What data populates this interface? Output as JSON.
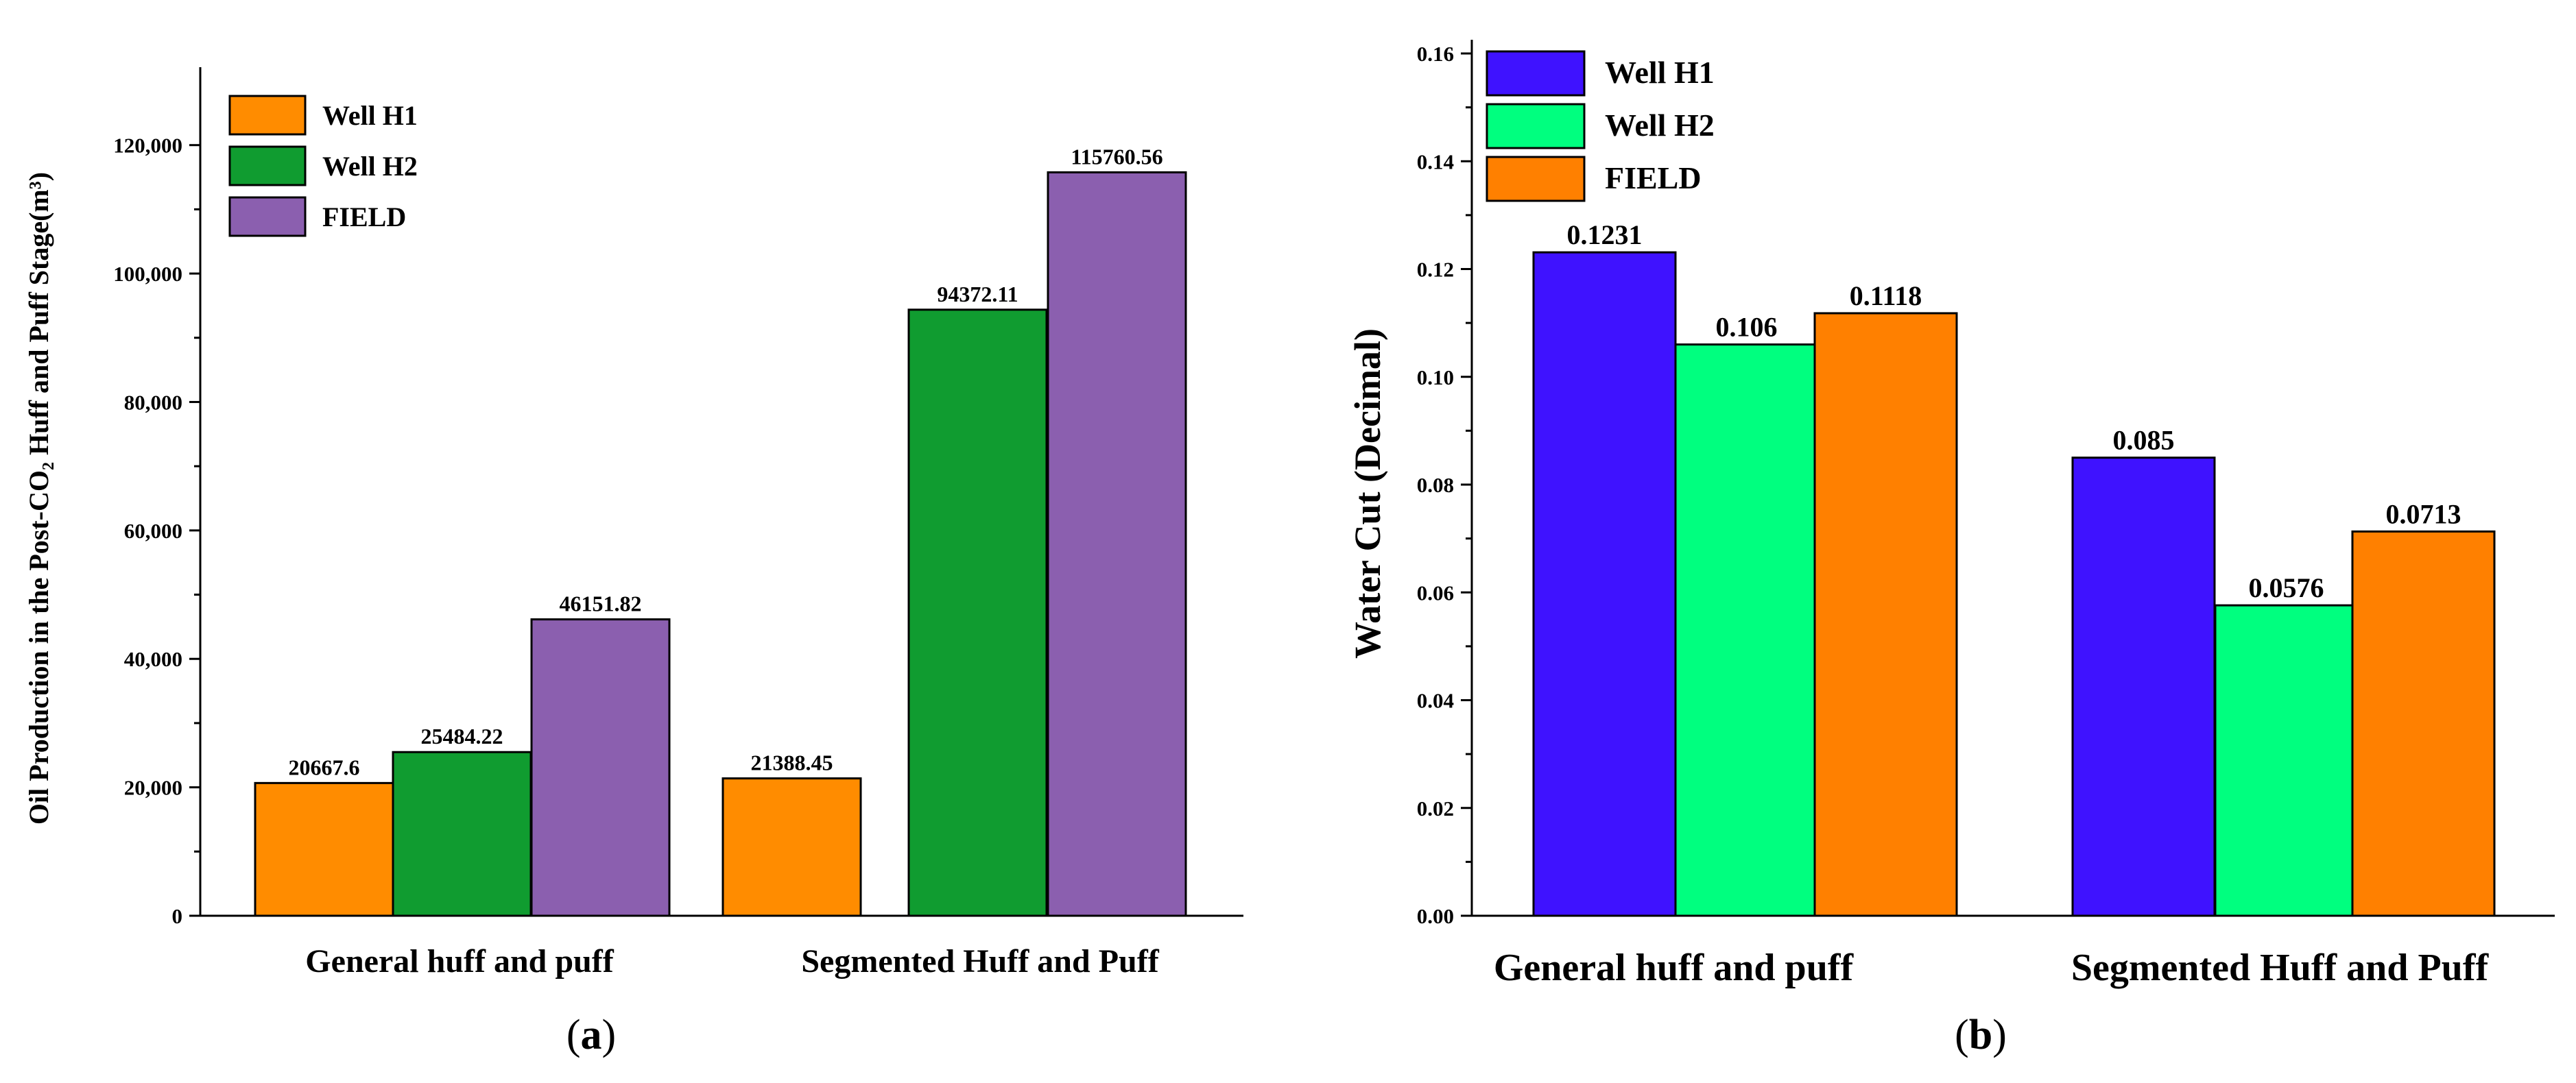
{
  "chart_data": [
    {
      "type": "bar",
      "panel_label": {
        "open": "(",
        "letter": "a",
        "close": ")"
      },
      "title": "",
      "xlabel": "",
      "ylabel": "Oil Production in the Post-CO₂ Huff and Puff Stage(m³)",
      "ylim": [
        0,
        130000
      ],
      "yticks": [
        "0",
        "20,000",
        "40,000",
        "60,000",
        "80,000",
        "100,000",
        "120,000"
      ],
      "ytick_values": [
        0,
        20000,
        40000,
        60000,
        80000,
        100000,
        120000
      ],
      "grid": false,
      "legend_position": "top-left",
      "categories": [
        "General huff and puff",
        "Segmented Huff and Puff"
      ],
      "series": [
        {
          "name": "Well H1",
          "color": "#FF8C00",
          "values": [
            20667.6,
            21388.45
          ],
          "labels": [
            "20667.6",
            "21388.45"
          ]
        },
        {
          "name": "Well H2",
          "color": "#109C30",
          "values": [
            25484.22,
            94372.11
          ],
          "labels": [
            "25484.22",
            "94372.11"
          ]
        },
        {
          "name": "FIELD",
          "color": "#8B5FAF",
          "values": [
            46151.82,
            115760.56
          ],
          "labels": [
            "46151.82",
            "115760.56"
          ]
        }
      ]
    },
    {
      "type": "bar",
      "panel_label": {
        "open": "(",
        "letter": "b",
        "close": ")"
      },
      "title": "",
      "xlabel": "",
      "ylabel": "Water Cut (Decimal)",
      "ylim": [
        0,
        0.16
      ],
      "yticks": [
        "0.00",
        "0.02",
        "0.04",
        "0.06",
        "0.08",
        "0.10",
        "0.12",
        "0.14",
        "0.16"
      ],
      "ytick_values": [
        0,
        0.02,
        0.04,
        0.06,
        0.08,
        0.1,
        0.12,
        0.14,
        0.16
      ],
      "grid": false,
      "legend_position": "top-left",
      "categories": [
        "General huff and puff",
        "Segmented Huff and Puff"
      ],
      "series": [
        {
          "name": "Well H1",
          "color": "#3F12FF",
          "values": [
            0.1231,
            0.085
          ],
          "labels": [
            "0.1231",
            "0.085"
          ]
        },
        {
          "name": "Well H2",
          "color": "#00FF7F",
          "values": [
            0.106,
            0.0576
          ],
          "labels": [
            "0.106",
            "0.0576"
          ]
        },
        {
          "name": "FIELD",
          "color": "#FF8000",
          "values": [
            0.1118,
            0.0713
          ],
          "labels": [
            "0.1118",
            "0.0713"
          ]
        }
      ]
    }
  ]
}
